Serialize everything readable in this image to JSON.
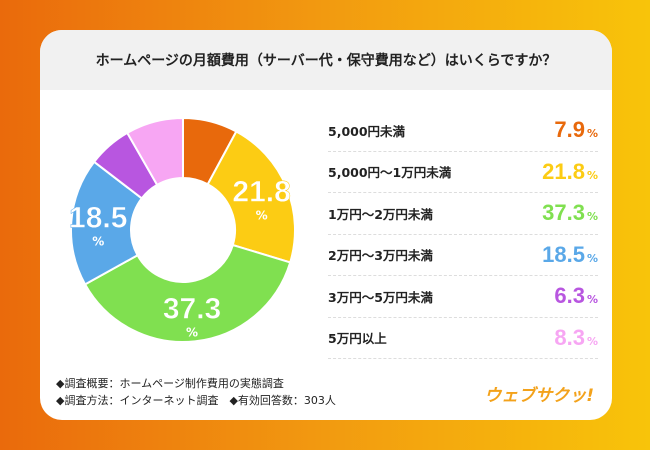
{
  "title": "ホームページの月額費用（サーバー代・保守費用など）はいくらですか？",
  "chart_data": {
    "type": "pie",
    "title": "ホームページの月額費用（サーバー代・保守費用など）はいくらですか？",
    "categories": [
      "5,000円未満",
      "5,000円〜1万円未満",
      "1万円〜2万円未満",
      "2万円〜3万円未満",
      "3万円〜5万円未満",
      "5万円以上"
    ],
    "values": [
      7.9,
      21.8,
      37.3,
      18.5,
      6.3,
      8.3
    ],
    "value_labels": [
      "7.9",
      "21.8",
      "37.3",
      "18.5",
      "6.3",
      "8.3"
    ],
    "colors": [
      "#e8690c",
      "#fccc14",
      "#80e050",
      "#5aa8e8",
      "#b856e0",
      "#f7a6f3"
    ],
    "unit": "%",
    "donut": true,
    "legend": "right"
  },
  "footer": {
    "line1": "◆調査概要：ホームページ制作費用の実態調査",
    "line2": "◆調査方法：インターネット調査　◆有効回答数：303人"
  },
  "logo": "ウェブサクッ!"
}
